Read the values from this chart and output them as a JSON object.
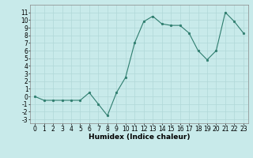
{
  "x": [
    0,
    1,
    2,
    3,
    4,
    5,
    6,
    7,
    8,
    9,
    10,
    11,
    12,
    13,
    14,
    15,
    16,
    17,
    18,
    19,
    20,
    21,
    22,
    23
  ],
  "y": [
    0.0,
    -0.5,
    -0.5,
    -0.5,
    -0.5,
    -0.5,
    0.5,
    -1.0,
    -2.5,
    0.5,
    2.5,
    7.0,
    9.8,
    10.5,
    9.5,
    9.3,
    9.3,
    8.3,
    6.0,
    4.8,
    6.0,
    11.0,
    9.8,
    8.3
  ],
  "line_color": "#2e7d6e",
  "marker": "o",
  "marker_size": 1.8,
  "background_color": "#c8eaea",
  "grid_color": "#b0d8d8",
  "xlabel": "Humidex (Indice chaleur)",
  "ylim": [
    -3.5,
    12
  ],
  "xlim": [
    -0.5,
    23.5
  ],
  "yticks": [
    -3,
    -2,
    -1,
    0,
    1,
    2,
    3,
    4,
    5,
    6,
    7,
    8,
    9,
    10,
    11
  ],
  "xticks": [
    0,
    1,
    2,
    3,
    4,
    5,
    6,
    7,
    8,
    9,
    10,
    11,
    12,
    13,
    14,
    15,
    16,
    17,
    18,
    19,
    20,
    21,
    22,
    23
  ],
  "tick_fontsize": 5.5,
  "xlabel_fontsize": 6.5
}
